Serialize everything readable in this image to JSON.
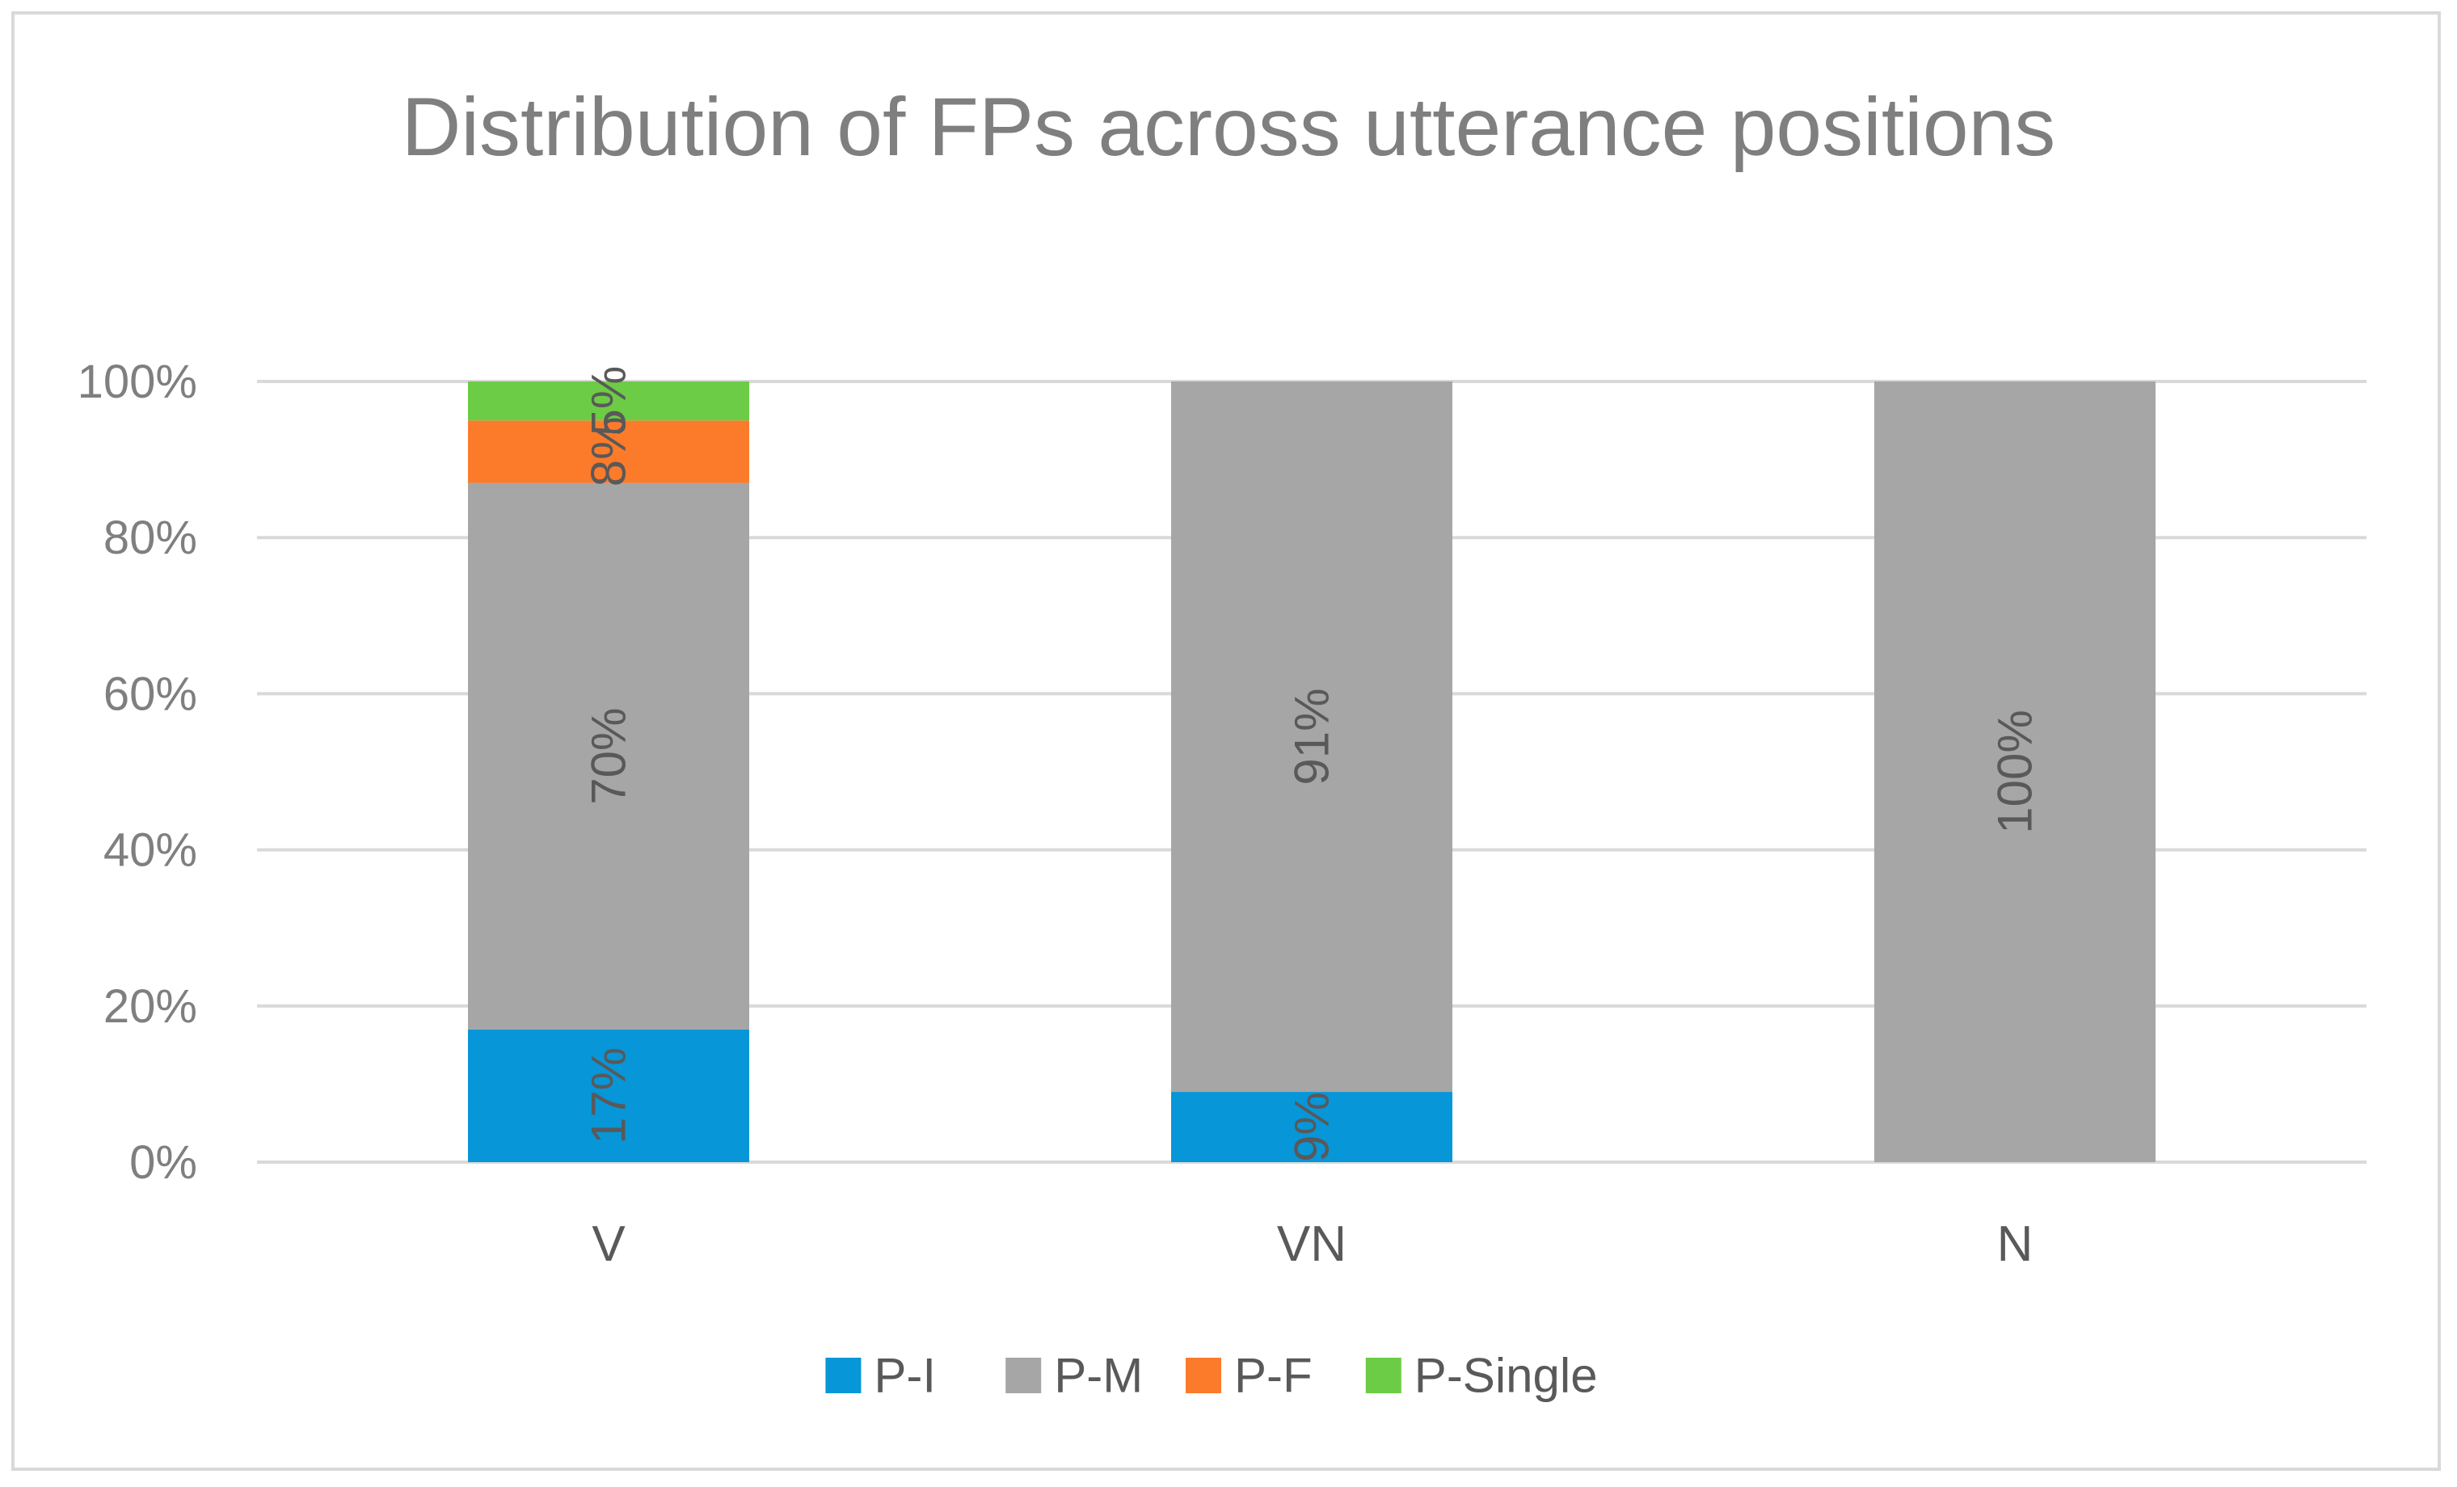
{
  "chart_data": {
    "type": "bar",
    "stacked": true,
    "title": "Distribution of FPs across utterance positions",
    "categories": [
      "V",
      "VN",
      "N"
    ],
    "series": [
      {
        "name": "P-I",
        "color": "#0796d8",
        "values": [
          17,
          9,
          0
        ],
        "labels": [
          "17%",
          "9%",
          ""
        ]
      },
      {
        "name": "P-M",
        "color": "#a6a6a6",
        "values": [
          70,
          91,
          100
        ],
        "labels": [
          "70%",
          "91%",
          "100%"
        ]
      },
      {
        "name": "P-F",
        "color": "#fb7b2b",
        "values": [
          8,
          0,
          0
        ],
        "labels": [
          "8%",
          "",
          ""
        ]
      },
      {
        "name": "P-Single",
        "color": "#6ccc45",
        "values": [
          5,
          0,
          0
        ],
        "labels": [
          "5%",
          "",
          ""
        ]
      }
    ],
    "yticks": [
      "0%",
      "20%",
      "40%",
      "60%",
      "80%",
      "100%"
    ],
    "ylim": [
      0,
      100
    ],
    "grid": true,
    "legend_position": "bottom"
  }
}
